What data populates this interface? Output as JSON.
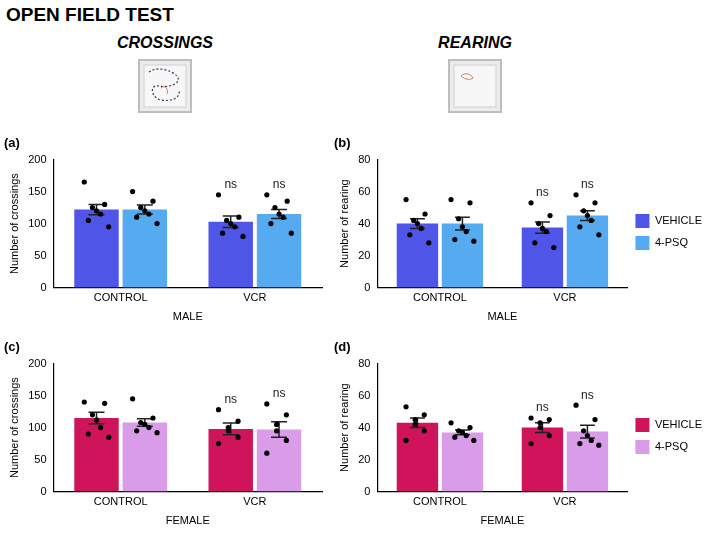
{
  "title": "OPEN FIELD TEST",
  "columns": [
    "CROSSINGS",
    "REARING"
  ],
  "chart_data": [
    {
      "type": "bar",
      "panel_label": "(a)",
      "x_label": "MALE",
      "y_label": "Number of crossings",
      "categories": [
        "CONTROL",
        "VCR"
      ],
      "ylim": [
        0,
        200
      ],
      "yticks": [
        0,
        50,
        100,
        150,
        200
      ],
      "grid": false,
      "legend": false,
      "series": [
        {
          "name": "VEHICLE",
          "color": "#4f55e6",
          "values": [
            122,
            103
          ],
          "errors": [
            8,
            9
          ],
          "points": [
            [
              165,
              130,
              125,
              120,
              115,
              105,
              95
            ],
            [
              145,
              110,
              105,
              100,
              95,
              85,
              80
            ]
          ],
          "annotations": [
            null,
            "ns"
          ]
        },
        {
          "name": "4-PSQ",
          "color": "#55aaf0",
          "values": [
            122,
            115
          ],
          "errors": [
            7,
            7
          ],
          "points": [
            [
              150,
              135,
              125,
              120,
              115,
              110,
              100
            ],
            [
              145,
              135,
              125,
              115,
              110,
              100,
              85
            ]
          ],
          "annotations": [
            null,
            "ns"
          ]
        }
      ]
    },
    {
      "type": "bar",
      "panel_label": "(b)",
      "x_label": "MALE",
      "y_label": "Number of rearing",
      "categories": [
        "CONTROL",
        "VCR"
      ],
      "ylim": [
        0,
        80
      ],
      "yticks": [
        0,
        20,
        40,
        60,
        80
      ],
      "grid": false,
      "legend": "right",
      "series": [
        {
          "name": "VEHICLE",
          "color": "#4f55e6",
          "values": [
            40,
            37.5
          ],
          "errors": [
            3,
            3.5
          ],
          "points": [
            [
              55,
              46,
              42,
              40,
              37,
              33,
              28
            ],
            [
              53,
              45,
              40,
              37,
              35,
              28,
              25
            ]
          ],
          "annotations": [
            null,
            "ns"
          ]
        },
        {
          "name": "4-PSQ",
          "color": "#55aaf0",
          "values": [
            40,
            45
          ],
          "errors": [
            4,
            3
          ],
          "points": [
            [
              55,
              53,
              43,
              38,
              35,
              30,
              29
            ],
            [
              58,
              53,
              48,
              45,
              42,
              38,
              33
            ]
          ],
          "annotations": [
            null,
            "ns"
          ]
        }
      ]
    },
    {
      "type": "bar",
      "panel_label": "(c)",
      "x_label": "FEMALE",
      "y_label": "Number of crossings",
      "categories": [
        "CONTROL",
        "VCR"
      ],
      "ylim": [
        0,
        200
      ],
      "yticks": [
        0,
        50,
        100,
        150,
        200
      ],
      "grid": false,
      "legend": false,
      "series": [
        {
          "name": "VEHICLE",
          "color": "#d0145c",
          "values": [
            115,
            98
          ],
          "errors": [
            9,
            9
          ],
          "points": [
            [
              140,
              138,
              120,
              112,
              100,
              90,
              85
            ],
            [
              128,
              110,
              100,
              95,
              85,
              75
            ]
          ],
          "annotations": [
            null,
            "ns"
          ]
        },
        {
          "name": "4-PSQ",
          "color": "#d89ce8",
          "values": [
            108,
            97
          ],
          "errors": [
            6,
            12
          ],
          "points": [
            [
              145,
              115,
              108,
              105,
              100,
              95,
              92
            ],
            [
              137,
              120,
              105,
              95,
              80,
              60
            ]
          ],
          "annotations": [
            null,
            "ns"
          ]
        }
      ]
    },
    {
      "type": "bar",
      "panel_label": "(d)",
      "x_label": "FEMALE",
      "y_label": "Number of rearing",
      "categories": [
        "CONTROL",
        "VCR"
      ],
      "ylim": [
        0,
        80
      ],
      "yticks": [
        0,
        20,
        40,
        60,
        80
      ],
      "grid": false,
      "legend": "right",
      "series": [
        {
          "name": "VEHICLE",
          "color": "#d0145c",
          "values": [
            43,
            40
          ],
          "errors": [
            3,
            3
          ],
          "points": [
            [
              53,
              48,
              45,
              42,
              38,
              32
            ],
            [
              46,
              45,
              43,
              40,
              35,
              30
            ]
          ],
          "annotations": [
            null,
            "ns"
          ]
        },
        {
          "name": "4-PSQ",
          "color": "#d89ce8",
          "values": [
            37,
            37.5
          ],
          "errors": [
            1.5,
            4
          ],
          "points": [
            [
              43,
              40,
              38,
              37,
              35,
              34,
              32
            ],
            [
              54,
              45,
              38,
              35,
              32,
              30,
              29
            ]
          ],
          "annotations": [
            null,
            "ns"
          ]
        }
      ]
    }
  ]
}
